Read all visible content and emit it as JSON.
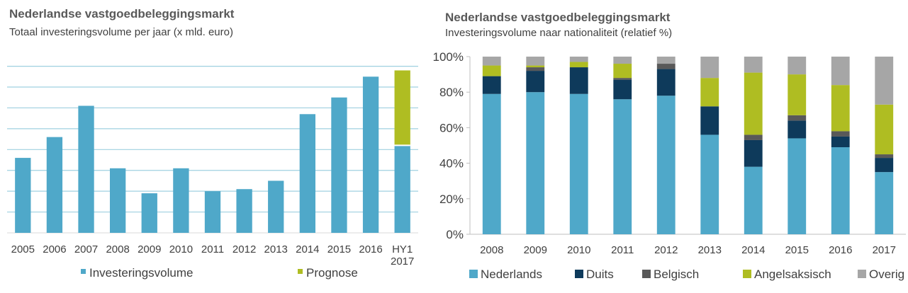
{
  "chart_data": [
    {
      "type": "bar",
      "title": "Nederlandse vastgoedbeleggingsmarkt",
      "subtitle": "Totaal investeringsvolume per jaar  (x mld. euro)",
      "categories": [
        "2005",
        "2006",
        "2007",
        "2008",
        "2009",
        "2010",
        "2011",
        "2012",
        "2013",
        "2014",
        "2015",
        "2016",
        "HY1\n2017"
      ],
      "series": [
        {
          "name": "Investeringsvolume",
          "color": "#4fa8c9",
          "values": [
            3.6,
            4.6,
            6.1,
            3.1,
            1.9,
            3.1,
            2.0,
            2.1,
            2.5,
            5.7,
            6.5,
            7.5,
            4.2
          ]
        },
        {
          "name": "Prognose",
          "color": "#afbd22",
          "values": [
            null,
            null,
            null,
            null,
            null,
            null,
            null,
            null,
            null,
            null,
            null,
            null,
            3.6
          ]
        }
      ],
      "ylim": [
        0,
        8.7
      ],
      "gridlines": [
        1,
        2,
        3,
        4,
        5,
        6,
        7,
        8
      ],
      "grid": true,
      "y_tick_labels": false,
      "legend_position": "bottom"
    },
    {
      "type": "bar",
      "stacked": true,
      "title": "Nederlandse vastgoedbeleggingsmarkt",
      "subtitle": "Investeringsvolume naar nationaliteit  (relatief %)",
      "categories": [
        "2008",
        "2009",
        "2010",
        "2011",
        "2012",
        "2013",
        "2014",
        "2015",
        "2016",
        "2017"
      ],
      "series": [
        {
          "name": "Nederlands",
          "color": "#4fa8c9",
          "values": [
            79,
            80,
            79,
            76,
            78,
            56,
            38,
            54,
            49,
            35
          ]
        },
        {
          "name": "Duits",
          "color": "#0e3a5b",
          "values": [
            10,
            12,
            15,
            11,
            15,
            16,
            15,
            10,
            6,
            8
          ]
        },
        {
          "name": "Belgisch",
          "color": "#595959",
          "values": [
            0,
            2,
            0,
            1,
            3,
            0,
            3,
            3,
            3,
            2
          ]
        },
        {
          "name": "Angelsaksisch",
          "color": "#afbd22",
          "values": [
            6,
            1,
            3,
            8,
            0,
            16,
            35,
            23,
            26,
            28
          ]
        },
        {
          "name": "Overig",
          "color": "#a6a6a6",
          "values": [
            5,
            5,
            3,
            4,
            4,
            12,
            9,
            10,
            16,
            27
          ]
        }
      ],
      "ylim": [
        0,
        100
      ],
      "y_ticks": [
        "0%",
        "20%",
        "40%",
        "60%",
        "80%",
        "100%"
      ],
      "grid": false,
      "legend_position": "bottom"
    }
  ]
}
